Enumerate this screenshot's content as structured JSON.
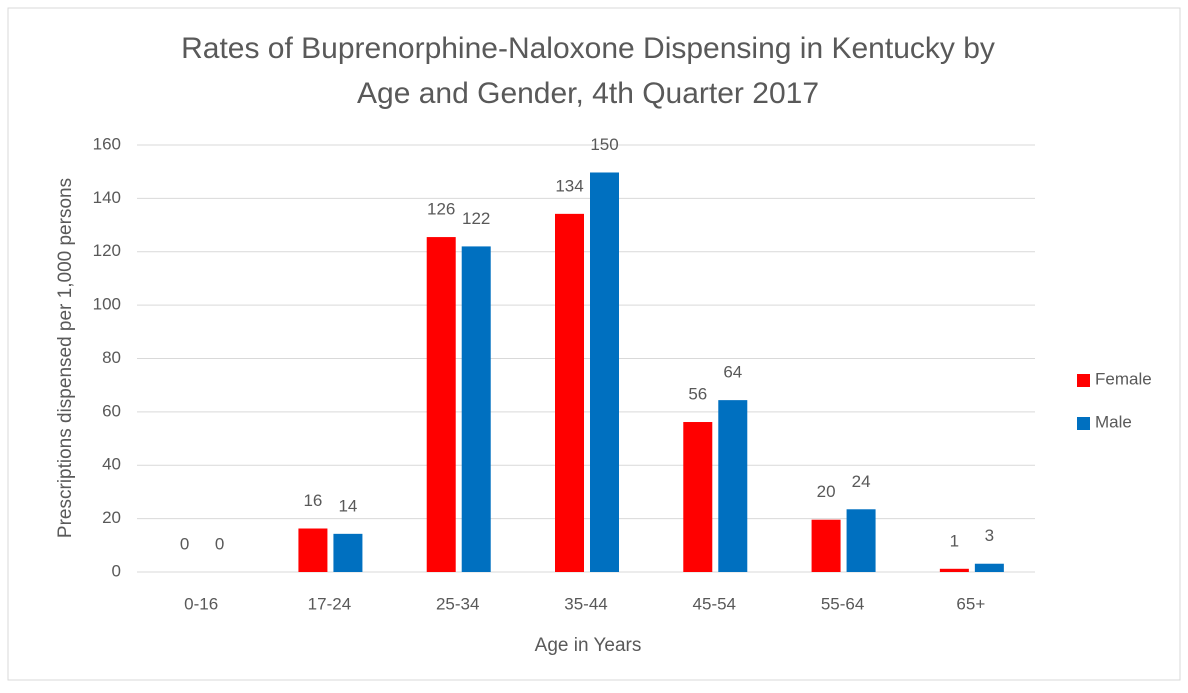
{
  "chart_data": {
    "type": "bar",
    "title": "Rates of Buprenorphine-Naloxone Dispensing in Kentucky by Age and Gender, 4th Quarter 2017",
    "title_lines": [
      "Rates of Buprenorphine-Naloxone Dispensing in Kentucky by",
      "Age and Gender, 4th Quarter 2017"
    ],
    "x_label": "Age in Years",
    "y_label": "Prescriptions dispensed per 1,000 persons",
    "categories": [
      "0-16",
      "17-24",
      "25-34",
      "35-44",
      "45-54",
      "55-64",
      "65+"
    ],
    "series": [
      {
        "name": "Female",
        "color": "#ff0000",
        "values": [
          0,
          16.3,
          125.5,
          134.2,
          56.2,
          19.6,
          1.2
        ],
        "value_labels": [
          "0",
          "16",
          "126",
          "134",
          "56",
          "20",
          "1"
        ]
      },
      {
        "name": "Male",
        "color": "#0070c0",
        "values": [
          0,
          14.3,
          122,
          149.7,
          64.4,
          23.5,
          3.1
        ],
        "value_labels": [
          "0",
          "14",
          "122",
          "150",
          "64",
          "24",
          "3"
        ]
      }
    ],
    "ylim": [
      0,
      160
    ],
    "yticks": [
      0,
      20,
      40,
      60,
      80,
      100,
      120,
      140,
      160
    ],
    "grid": true,
    "legend": "right"
  }
}
